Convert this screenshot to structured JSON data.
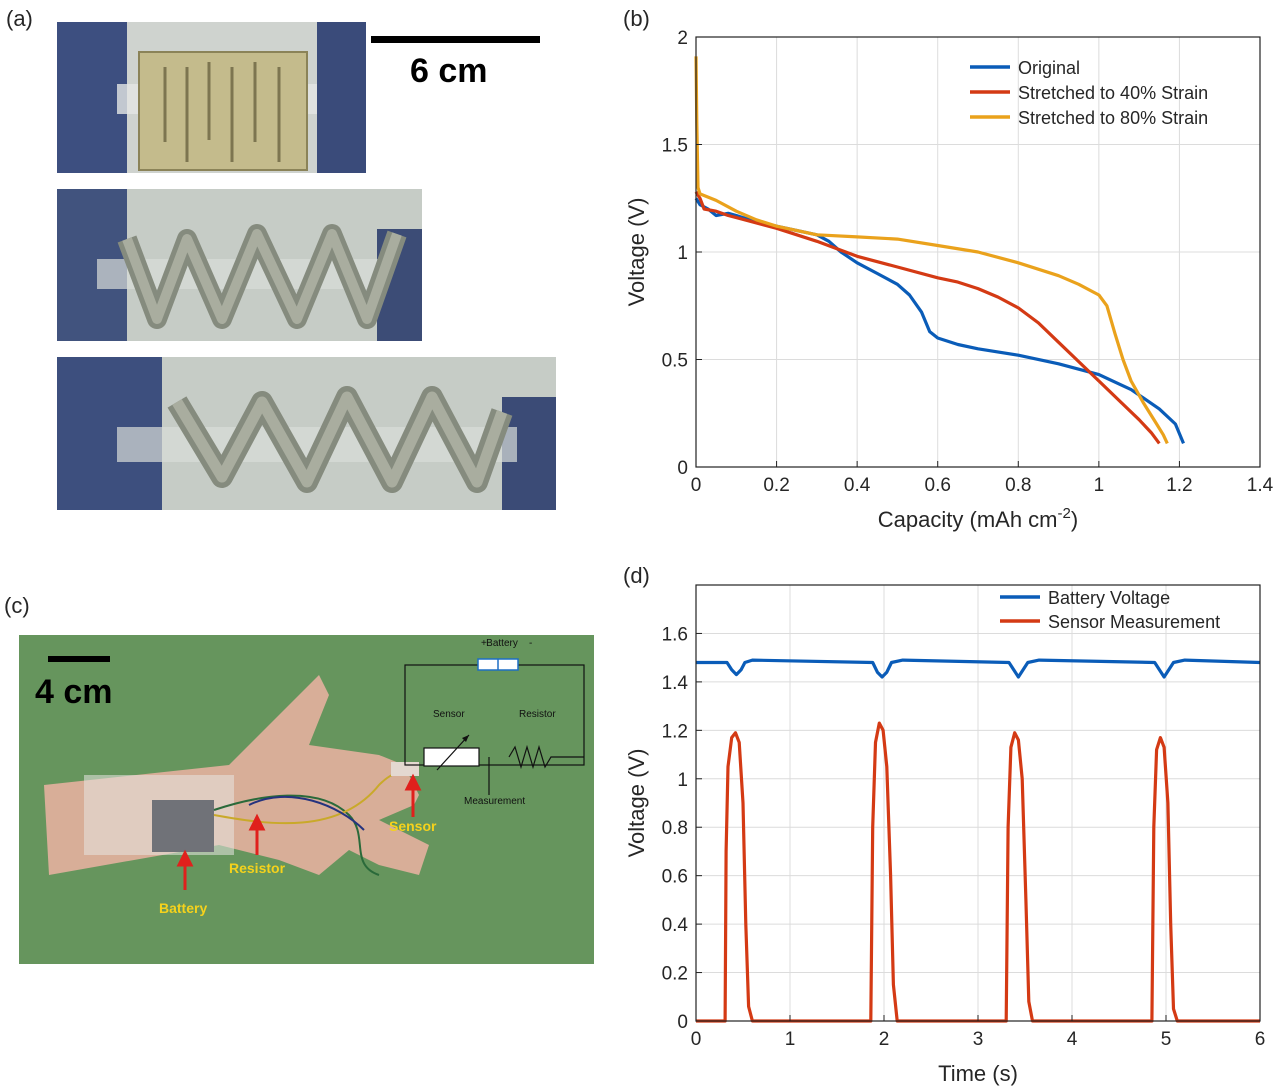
{
  "panels": {
    "a": {
      "label": "(a)",
      "scale_text": "6 cm"
    },
    "b": {
      "label": "(b)"
    },
    "c": {
      "label": "(c)",
      "scale_text": "4 cm",
      "annotations": {
        "battery": "Battery",
        "resistor": "Resistor",
        "sensor": "Sensor"
      },
      "circuit": {
        "battery": "Battery",
        "plus": "+",
        "minus": "-",
        "sensor": "Sensor",
        "resistor": "Resistor",
        "measurement": "Measurement"
      }
    },
    "d": {
      "label": "(d)"
    }
  },
  "chart_data": [
    {
      "id": "b",
      "type": "line",
      "xlabel": "Capacity (mAh cm",
      "xlabel_sup": "-2",
      "xlabel_close": ")",
      "ylabel": "Voltage (V)",
      "xlim": [
        0,
        1.4
      ],
      "ylim": [
        0,
        2
      ],
      "xticks": [
        0,
        0.2,
        0.4,
        0.6,
        0.8,
        1,
        1.2,
        1.4
      ],
      "yticks": [
        0,
        0.5,
        1,
        1.5,
        2
      ],
      "xtick_labels": [
        "0",
        "0.2",
        "0.4",
        "0.6",
        "0.8",
        "1",
        "1.2",
        "1.4"
      ],
      "ytick_labels": [
        "0",
        "0.5",
        "1",
        "1.5",
        "2"
      ],
      "grid": true,
      "legend_position": "top-right",
      "series": [
        {
          "name": "Original",
          "color": "#0a5cb8",
          "points": [
            [
              0,
              1.25
            ],
            [
              0.01,
              1.22
            ],
            [
              0.03,
              1.2
            ],
            [
              0.05,
              1.17
            ],
            [
              0.08,
              1.18
            ],
            [
              0.1,
              1.17
            ],
            [
              0.15,
              1.14
            ],
            [
              0.2,
              1.12
            ],
            [
              0.25,
              1.1
            ],
            [
              0.3,
              1.08
            ],
            [
              0.33,
              1.05
            ],
            [
              0.36,
              1.0
            ],
            [
              0.4,
              0.95
            ],
            [
              0.45,
              0.9
            ],
            [
              0.5,
              0.85
            ],
            [
              0.53,
              0.8
            ],
            [
              0.56,
              0.72
            ],
            [
              0.58,
              0.63
            ],
            [
              0.6,
              0.6
            ],
            [
              0.65,
              0.57
            ],
            [
              0.7,
              0.55
            ],
            [
              0.8,
              0.52
            ],
            [
              0.9,
              0.48
            ],
            [
              1.0,
              0.43
            ],
            [
              1.08,
              0.36
            ],
            [
              1.15,
              0.27
            ],
            [
              1.19,
              0.2
            ],
            [
              1.21,
              0.11
            ]
          ]
        },
        {
          "name": "Stretched to 40% Strain",
          "color": "#d43a14",
          "points": [
            [
              0,
              1.28
            ],
            [
              0.01,
              1.25
            ],
            [
              0.02,
              1.2
            ],
            [
              0.05,
              1.19
            ],
            [
              0.08,
              1.17
            ],
            [
              0.1,
              1.16
            ],
            [
              0.2,
              1.11
            ],
            [
              0.3,
              1.05
            ],
            [
              0.4,
              0.98
            ],
            [
              0.5,
              0.93
            ],
            [
              0.6,
              0.88
            ],
            [
              0.65,
              0.86
            ],
            [
              0.7,
              0.83
            ],
            [
              0.75,
              0.79
            ],
            [
              0.8,
              0.74
            ],
            [
              0.85,
              0.67
            ],
            [
              0.9,
              0.58
            ],
            [
              0.95,
              0.49
            ],
            [
              1.0,
              0.4
            ],
            [
              1.05,
              0.31
            ],
            [
              1.1,
              0.22
            ],
            [
              1.13,
              0.16
            ],
            [
              1.15,
              0.11
            ]
          ]
        },
        {
          "name": "Stretched to 80% Strain",
          "color": "#eaa21c",
          "points": [
            [
              0,
              1.91
            ],
            [
              0.002,
              1.6
            ],
            [
              0.005,
              1.3
            ],
            [
              0.01,
              1.27
            ],
            [
              0.05,
              1.24
            ],
            [
              0.1,
              1.19
            ],
            [
              0.15,
              1.15
            ],
            [
              0.2,
              1.12
            ],
            [
              0.25,
              1.1
            ],
            [
              0.3,
              1.08
            ],
            [
              0.4,
              1.07
            ],
            [
              0.5,
              1.06
            ],
            [
              0.6,
              1.03
            ],
            [
              0.7,
              1.0
            ],
            [
              0.8,
              0.95
            ],
            [
              0.9,
              0.89
            ],
            [
              0.95,
              0.85
            ],
            [
              1.0,
              0.8
            ],
            [
              1.02,
              0.75
            ],
            [
              1.04,
              0.62
            ],
            [
              1.06,
              0.5
            ],
            [
              1.08,
              0.4
            ],
            [
              1.11,
              0.3
            ],
            [
              1.14,
              0.21
            ],
            [
              1.16,
              0.15
            ],
            [
              1.17,
              0.11
            ]
          ]
        }
      ]
    },
    {
      "id": "d",
      "type": "line",
      "xlabel": "Time (s)",
      "ylabel": "Voltage (V)",
      "xlim": [
        0,
        6
      ],
      "ylim": [
        0,
        1.8
      ],
      "xticks": [
        0,
        1,
        2,
        3,
        4,
        5,
        6
      ],
      "yticks": [
        0,
        0.2,
        0.4,
        0.6,
        0.8,
        1,
        1.2,
        1.4,
        1.6
      ],
      "xtick_labels": [
        "0",
        "1",
        "2",
        "3",
        "4",
        "5",
        "6"
      ],
      "ytick_labels": [
        "0",
        "0.2",
        "0.4",
        "0.6",
        "0.8",
        "1",
        "1.2",
        "1.4",
        "1.6"
      ],
      "grid": true,
      "legend_position": "top-right",
      "series": [
        {
          "name": "Battery Voltage",
          "color": "#0a5cb8",
          "points": [
            [
              0,
              1.48
            ],
            [
              0.33,
              1.48
            ],
            [
              0.38,
              1.45
            ],
            [
              0.43,
              1.43
            ],
            [
              0.48,
              1.45
            ],
            [
              0.52,
              1.48
            ],
            [
              0.6,
              1.49
            ],
            [
              1.88,
              1.48
            ],
            [
              1.93,
              1.44
            ],
            [
              1.98,
              1.42
            ],
            [
              2.03,
              1.44
            ],
            [
              2.08,
              1.48
            ],
            [
              2.2,
              1.49
            ],
            [
              3.33,
              1.48
            ],
            [
              3.38,
              1.45
            ],
            [
              3.43,
              1.42
            ],
            [
              3.48,
              1.45
            ],
            [
              3.53,
              1.48
            ],
            [
              3.65,
              1.49
            ],
            [
              4.88,
              1.48
            ],
            [
              4.93,
              1.45
            ],
            [
              4.98,
              1.42
            ],
            [
              5.03,
              1.45
            ],
            [
              5.08,
              1.48
            ],
            [
              5.2,
              1.49
            ],
            [
              6,
              1.48
            ]
          ]
        },
        {
          "name": "Sensor Measurement",
          "color": "#d43a14",
          "points": [
            [
              0,
              0
            ],
            [
              0.31,
              0
            ],
            [
              0.32,
              0.7
            ],
            [
              0.34,
              1.05
            ],
            [
              0.38,
              1.17
            ],
            [
              0.42,
              1.19
            ],
            [
              0.46,
              1.15
            ],
            [
              0.5,
              0.9
            ],
            [
              0.53,
              0.4
            ],
            [
              0.56,
              0.06
            ],
            [
              0.6,
              0
            ],
            [
              1.86,
              0
            ],
            [
              1.88,
              0.8
            ],
            [
              1.91,
              1.15
            ],
            [
              1.95,
              1.23
            ],
            [
              1.99,
              1.2
            ],
            [
              2.03,
              1.05
            ],
            [
              2.07,
              0.6
            ],
            [
              2.1,
              0.15
            ],
            [
              2.14,
              0
            ],
            [
              3.3,
              0
            ],
            [
              3.32,
              0.8
            ],
            [
              3.35,
              1.13
            ],
            [
              3.39,
              1.19
            ],
            [
              3.43,
              1.16
            ],
            [
              3.47,
              1.0
            ],
            [
              3.51,
              0.5
            ],
            [
              3.54,
              0.08
            ],
            [
              3.58,
              0
            ],
            [
              4.85,
              0
            ],
            [
              4.87,
              0.8
            ],
            [
              4.9,
              1.12
            ],
            [
              4.94,
              1.17
            ],
            [
              4.98,
              1.13
            ],
            [
              5.02,
              0.9
            ],
            [
              5.05,
              0.4
            ],
            [
              5.08,
              0.05
            ],
            [
              5.12,
              0
            ],
            [
              6,
              0
            ]
          ]
        }
      ]
    }
  ]
}
